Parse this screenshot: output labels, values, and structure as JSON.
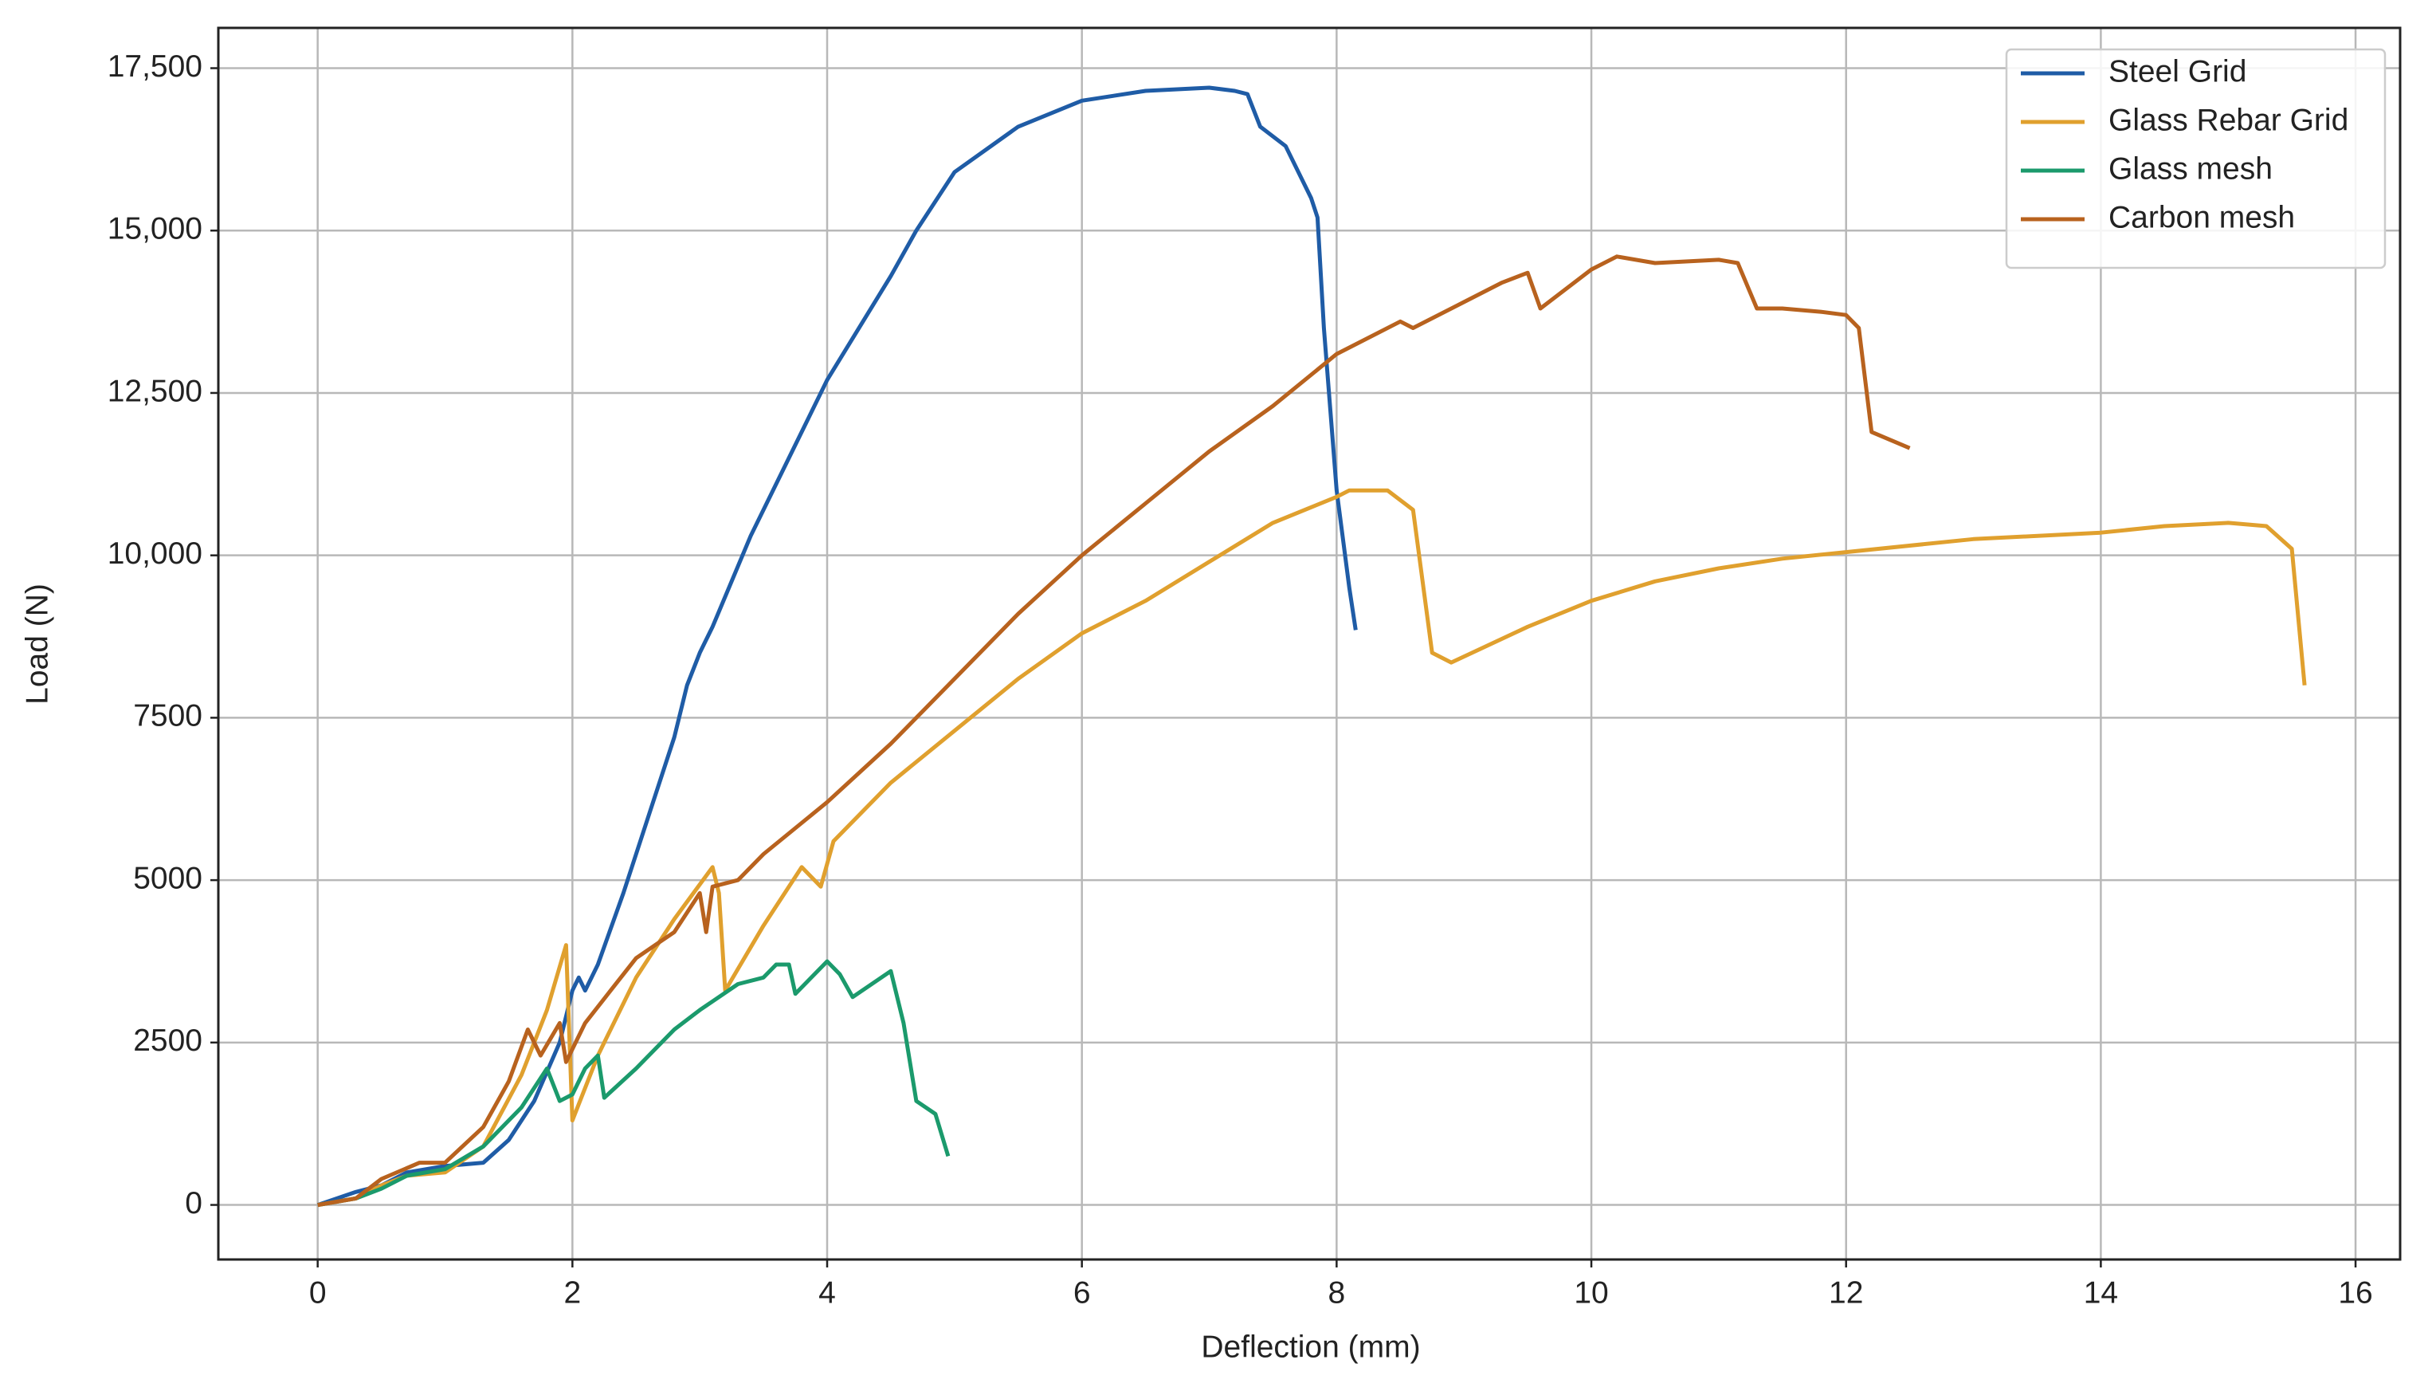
{
  "chart_data": {
    "type": "line",
    "x_label": "Deflection (mm)",
    "y_label": "Load (N)",
    "xlim": [
      -0.78,
      16.35
    ],
    "ylim": [
      -840,
      18120
    ],
    "xticks": [
      0,
      2,
      4,
      6,
      8,
      10,
      12,
      14,
      16
    ],
    "yticks": [
      0,
      2500,
      5000,
      7500,
      {
        "value": 10000,
        "label": "10,000"
      },
      {
        "value": 12500,
        "label": "12,500"
      },
      {
        "value": 15000,
        "label": "15,000"
      },
      {
        "value": 17500,
        "label": "17,500"
      }
    ],
    "grid": true,
    "legend": "upper right",
    "series": [
      {
        "name": "Steel Grid",
        "color": "#1f5ca6",
        "x": [
          0,
          0.3,
          0.5,
          0.7,
          1.0,
          1.3,
          1.5,
          1.7,
          1.9,
          2.0,
          2.05,
          2.1,
          2.2,
          2.4,
          2.6,
          2.8,
          2.9,
          3.0,
          3.1,
          3.4,
          3.7,
          4.0,
          4.5,
          4.7,
          5.0,
          5.5,
          6.0,
          6.5,
          7.0,
          7.2,
          7.3,
          7.4,
          7.6,
          7.8,
          7.85,
          7.9,
          8.0,
          8.1,
          8.15
        ],
        "values": [
          0,
          200,
          300,
          500,
          600,
          650,
          1000,
          1600,
          2500,
          3300,
          3500,
          3300,
          3700,
          4800,
          6000,
          7200,
          8000,
          8500,
          8900,
          10300,
          11500,
          12700,
          14300,
          15000,
          15900,
          16600,
          17000,
          17150,
          17200,
          17150,
          17100,
          16600,
          16300,
          15500,
          15200,
          13500,
          11000,
          9500,
          8850
        ]
      },
      {
        "name": "Glass Rebar Grid",
        "color": "#e0a02e",
        "x": [
          0,
          0.3,
          0.5,
          0.7,
          1.0,
          1.3,
          1.6,
          1.8,
          1.95,
          2.0,
          2.2,
          2.5,
          2.8,
          3.1,
          3.15,
          3.2,
          3.5,
          3.8,
          3.95,
          4.05,
          4.5,
          5.0,
          5.5,
          6.0,
          6.3,
          6.5,
          7.0,
          7.5,
          8.0,
          8.1,
          8.4,
          8.6,
          8.75,
          8.9,
          9.5,
          10.0,
          10.5,
          11.0,
          11.5,
          12.0,
          13.0,
          14.0,
          14.5,
          15.0,
          15.3,
          15.5,
          15.6
        ],
        "values": [
          0,
          100,
          300,
          450,
          500,
          900,
          2000,
          3000,
          4000,
          1300,
          2300,
          3500,
          4400,
          5200,
          4800,
          3300,
          4300,
          5200,
          4900,
          5600,
          6500,
          7300,
          8100,
          8800,
          9100,
          9300,
          9900,
          10500,
          10900,
          11000,
          11000,
          10700,
          8500,
          8350,
          8900,
          9300,
          9600,
          9800,
          9950,
          10050,
          10250,
          10350,
          10450,
          10500,
          10450,
          10100,
          8000
        ]
      },
      {
        "name": "Glass mesh",
        "color": "#1b9a6c",
        "x": [
          0,
          0.3,
          0.5,
          0.7,
          1.0,
          1.3,
          1.6,
          1.8,
          1.9,
          2.0,
          2.1,
          2.2,
          2.25,
          2.5,
          2.8,
          3.0,
          3.3,
          3.5,
          3.6,
          3.7,
          3.75,
          4.0,
          4.1,
          4.2,
          4.5,
          4.6,
          4.7,
          4.85,
          4.95
        ],
        "values": [
          0,
          100,
          250,
          450,
          550,
          900,
          1500,
          2100,
          1600,
          1700,
          2100,
          2300,
          1650,
          2100,
          2700,
          3000,
          3400,
          3500,
          3700,
          3700,
          3250,
          3750,
          3550,
          3200,
          3600,
          2800,
          1600,
          1400,
          750
        ]
      },
      {
        "name": "Carbon mesh",
        "color": "#b8621e",
        "x": [
          0,
          0.3,
          0.5,
          0.8,
          1.0,
          1.3,
          1.5,
          1.65,
          1.75,
          1.9,
          1.95,
          2.1,
          2.3,
          2.5,
          2.65,
          2.8,
          3.0,
          3.05,
          3.1,
          3.3,
          3.5,
          4.0,
          4.5,
          5.0,
          5.5,
          6.0,
          6.5,
          7.0,
          7.5,
          8.0,
          8.5,
          8.6,
          9.0,
          9.3,
          9.5,
          9.6,
          10.0,
          10.2,
          10.5,
          11.0,
          11.15,
          11.3,
          11.5,
          11.8,
          12.0,
          12.1,
          12.2,
          12.5
        ],
        "values": [
          0,
          100,
          400,
          650,
          650,
          1200,
          1900,
          2700,
          2300,
          2800,
          2200,
          2800,
          3300,
          3800,
          4000,
          4200,
          4800,
          4200,
          4900,
          5000,
          5400,
          6200,
          7100,
          8100,
          9100,
          10000,
          10800,
          11600,
          12300,
          13100,
          13600,
          13500,
          13900,
          14200,
          14350,
          13800,
          14400,
          14600,
          14500,
          14550,
          14500,
          13800,
          13800,
          13750,
          13700,
          13500,
          11900,
          11650
        ]
      }
    ]
  }
}
